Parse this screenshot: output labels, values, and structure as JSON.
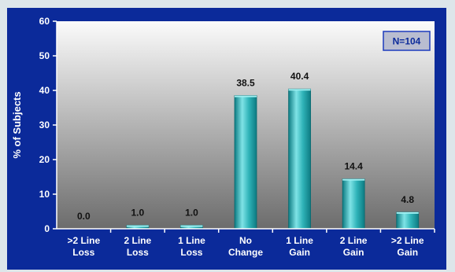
{
  "chart_data": {
    "type": "bar",
    "categories": [
      [
        ">2 Line",
        "Loss"
      ],
      [
        "2 Line",
        "Loss"
      ],
      [
        "1 Line",
        "Loss"
      ],
      [
        "No",
        "Change"
      ],
      [
        "1 Line",
        "Gain"
      ],
      [
        "2 Line",
        "Gain"
      ],
      [
        ">2 Line",
        "Gain"
      ]
    ],
    "values": [
      0.0,
      1.0,
      1.0,
      38.5,
      40.4,
      14.4,
      4.8
    ],
    "data_labels": [
      "0.0",
      "1.0",
      "1.0",
      "38.5",
      "40.4",
      "14.4",
      "4.8"
    ],
    "ylabel": "% of Subjects",
    "xlabel": "",
    "ylim": [
      0,
      60
    ],
    "yticks": [
      0,
      10,
      20,
      30,
      40,
      50,
      60
    ],
    "annotation": "N=104",
    "grid": false,
    "colors": {
      "frame": "#0b2a9a",
      "plot_top": "#fbfbfb",
      "plot_bottom": "#6c6c6c",
      "bar_light": "#7fe3e6",
      "bar_mid": "#2fb3b8",
      "bar_dark": "#0d7b82",
      "page_bg": "#dde6ea"
    }
  }
}
